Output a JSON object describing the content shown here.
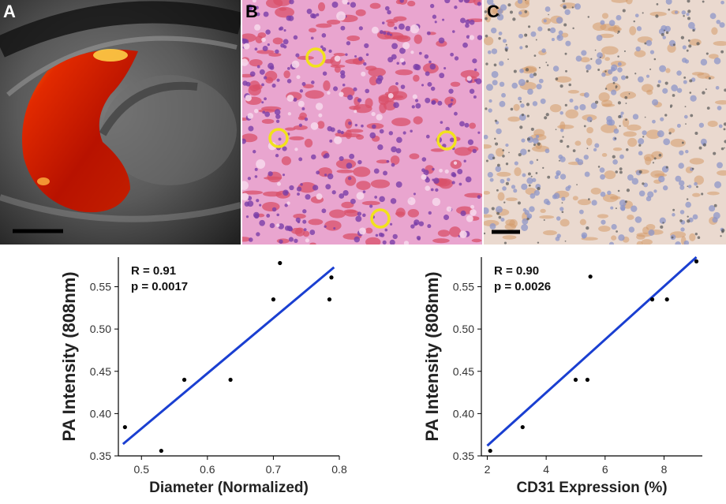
{
  "panels": {
    "a": {
      "letter": "A"
    },
    "b": {
      "letter": "B"
    },
    "c": {
      "letter": "C"
    }
  },
  "chart_data": [
    {
      "type": "scatter",
      "xlabel": "Diameter (Normalized)",
      "ylabel": "PA Intensity (808nm)",
      "annotations": [
        "R = 0.91",
        "p = 0.0017"
      ],
      "xlim": [
        0.465,
        0.8
      ],
      "ylim": [
        0.35,
        0.585
      ],
      "xticks": [
        0.5,
        0.6,
        0.7,
        0.8
      ],
      "yticks": [
        0.35,
        0.4,
        0.45,
        0.5,
        0.55
      ],
      "points": [
        {
          "x": 0.475,
          "y": 0.384
        },
        {
          "x": 0.53,
          "y": 0.356
        },
        {
          "x": 0.565,
          "y": 0.44
        },
        {
          "x": 0.635,
          "y": 0.44
        },
        {
          "x": 0.7,
          "y": 0.535
        },
        {
          "x": 0.71,
          "y": 0.578
        },
        {
          "x": 0.785,
          "y": 0.535
        },
        {
          "x": 0.788,
          "y": 0.561
        }
      ],
      "fit": {
        "x": [
          0.472,
          0.792
        ],
        "y": [
          0.364,
          0.573
        ],
        "color": "#1a3fd1"
      },
      "grid": false
    },
    {
      "type": "scatter",
      "xlabel": "CD31 Expression (%)",
      "ylabel": "PA Intensity (808nm)",
      "annotations": [
        "R = 0.90",
        "p = 0.0026"
      ],
      "xlim": [
        1.8,
        9.3
      ],
      "ylim": [
        0.35,
        0.585
      ],
      "xticks": [
        2,
        4,
        6,
        8
      ],
      "yticks": [
        0.35,
        0.4,
        0.45,
        0.5,
        0.55
      ],
      "points": [
        {
          "x": 2.1,
          "y": 0.356
        },
        {
          "x": 3.2,
          "y": 0.384
        },
        {
          "x": 5.0,
          "y": 0.44
        },
        {
          "x": 5.4,
          "y": 0.44
        },
        {
          "x": 5.5,
          "y": 0.562
        },
        {
          "x": 7.6,
          "y": 0.535
        },
        {
          "x": 8.1,
          "y": 0.535
        },
        {
          "x": 9.1,
          "y": 0.58
        }
      ],
      "fit": {
        "x": [
          2.0,
          9.1
        ],
        "y": [
          0.362,
          0.585
        ],
        "color": "#1a3fd1"
      },
      "grid": false
    }
  ]
}
